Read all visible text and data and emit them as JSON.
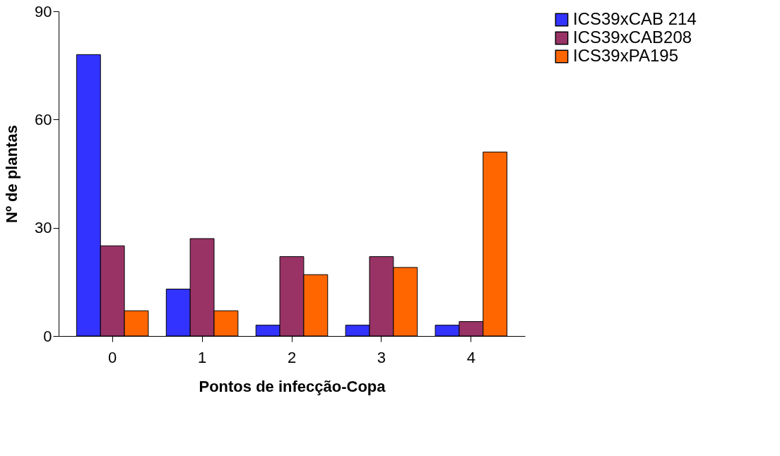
{
  "chart_data": {
    "type": "bar",
    "xlabel": "Pontos de infecção-Copa",
    "ylabel": "Nº de plantas",
    "categories": [
      "0",
      "1",
      "2",
      "3",
      "4"
    ],
    "series": [
      {
        "name": "ICS39xCAB 214",
        "color": "#3333ff",
        "values": [
          78,
          13,
          3,
          3,
          3
        ]
      },
      {
        "name": "ICS39xCAB208",
        "color": "#993366",
        "values": [
          25,
          27,
          22,
          22,
          4
        ]
      },
      {
        "name": "ICS39xPA195",
        "color": "#ff6600",
        "values": [
          7,
          7,
          17,
          19,
          51
        ]
      }
    ],
    "ylim": [
      0,
      90
    ],
    "yticks": [
      0,
      30,
      60,
      90
    ],
    "grid": false,
    "legend": "top right"
  }
}
